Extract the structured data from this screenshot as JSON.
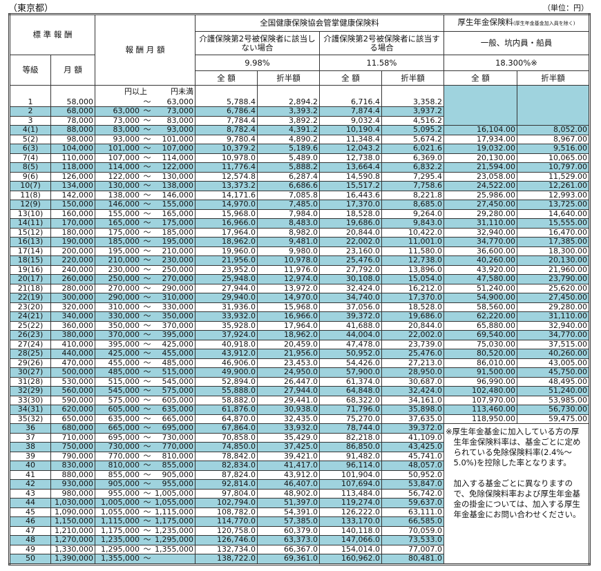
{
  "prefecture": "（東京都）",
  "unit": "（単位：円）",
  "header": {
    "standard": "標 準 報 酬",
    "range": "報 酬 月 額",
    "health": "全国健康保険協会管掌健康保険料",
    "pension": "厚生年金保険料",
    "pension_note": "(厚生年金基金加入員を除く)",
    "health_no_care": "介護保険第2号被保険者に該当しない場合",
    "health_care": "介護保険第2号被保険者に該当する場合",
    "pension_type": "一般、坑内員・船員",
    "grade": "等級",
    "monthly": "月 額",
    "rate1": "9.98%",
    "rate2": "11.58%",
    "rate3": "18.300%※",
    "full": "全 額",
    "half": "折半額",
    "lower": "円以上",
    "upper": "円未満",
    "tilde": "～"
  },
  "rows": [
    [
      "1",
      "58,000",
      "",
      "63,000",
      "5,788.4",
      "2,894.2",
      "6,716.4",
      "3,358.2",
      "",
      ""
    ],
    [
      "2",
      "68,000",
      "63,000",
      "73,000",
      "6,786.4",
      "3,393.2",
      "7,874.4",
      "3,937.2",
      "",
      ""
    ],
    [
      "3",
      "78,000",
      "73,000",
      "83,000",
      "7,784.4",
      "3,892.2",
      "9,032.4",
      "4,516.2",
      "",
      ""
    ],
    [
      "4(1)",
      "88,000",
      "83,000",
      "93,000",
      "8,782.4",
      "4,391.2",
      "10,190.4",
      "5,095.2",
      "16,104.00",
      "8,052.00"
    ],
    [
      "5(2)",
      "98,000",
      "93,000",
      "101,000",
      "9,780.4",
      "4,890.2",
      "11,348.4",
      "5,674.2",
      "17,934.00",
      "8,967.00"
    ],
    [
      "6(3)",
      "104,000",
      "101,000",
      "107,000",
      "10,379.2",
      "5,189.6",
      "12,043.2",
      "6,021.6",
      "19,032.00",
      "9,516.00"
    ],
    [
      "7(4)",
      "110,000",
      "107,000",
      "114,000",
      "10,978.0",
      "5,489.0",
      "12,738.0",
      "6,369.0",
      "20,130.00",
      "10,065.00"
    ],
    [
      "8(5)",
      "118,000",
      "114,000",
      "122,000",
      "11,776.4",
      "5,888.2",
      "13,664.4",
      "6,832.2",
      "21,594.00",
      "10,797.00"
    ],
    [
      "9(6)",
      "126,000",
      "122,000",
      "130,000",
      "12,574.8",
      "6,287.4",
      "14,590.8",
      "7,295.4",
      "23,058.00",
      "11,529.00"
    ],
    [
      "10(7)",
      "134,000",
      "130,000",
      "138,000",
      "13,373.2",
      "6,686.6",
      "15,517.2",
      "7,758.6",
      "24,522.00",
      "12,261.00"
    ],
    [
      "11(8)",
      "142,000",
      "138,000",
      "146,000",
      "14,171.6",
      "7,085.8",
      "16,443.6",
      "8,221.8",
      "25,986.00",
      "12,993.00"
    ],
    [
      "12(9)",
      "150,000",
      "146,000",
      "155,000",
      "14,970.0",
      "7,485.0",
      "17,370.0",
      "8,685.0",
      "27,450.00",
      "13,725.00"
    ],
    [
      "13(10)",
      "160,000",
      "155,000",
      "165,000",
      "15,968.0",
      "7,984.0",
      "18,528.0",
      "9,264.0",
      "29,280.00",
      "14,640.00"
    ],
    [
      "14(11)",
      "170,000",
      "165,000",
      "175,000",
      "16,966.0",
      "8,483.0",
      "19,686.0",
      "9,843.0",
      "31,110.00",
      "15,555.00"
    ],
    [
      "15(12)",
      "180,000",
      "175,000",
      "185,000",
      "17,964.0",
      "8,982.0",
      "20,844.0",
      "10,422.0",
      "32,940.00",
      "16,470.00"
    ],
    [
      "16(13)",
      "190,000",
      "185,000",
      "195,000",
      "18,962.0",
      "9,481.0",
      "22,002.0",
      "11,001.0",
      "34,770.00",
      "17,385.00"
    ],
    [
      "17(14)",
      "200,000",
      "195,000",
      "210,000",
      "19,960.0",
      "9,980.0",
      "23,160.0",
      "11,580.0",
      "36,600.00",
      "18,300.00"
    ],
    [
      "18(15)",
      "220,000",
      "210,000",
      "230,000",
      "21,956.0",
      "10,978.0",
      "25,476.0",
      "12,738.0",
      "40,260.00",
      "20,130.00"
    ],
    [
      "19(16)",
      "240,000",
      "230,000",
      "250,000",
      "23,952.0",
      "11,976.0",
      "27,792.0",
      "13,896.0",
      "43,920.00",
      "21,960.00"
    ],
    [
      "20(17)",
      "260,000",
      "250,000",
      "270,000",
      "25,948.0",
      "12,974.0",
      "30,108.0",
      "15,054.0",
      "47,580.00",
      "23,790.00"
    ],
    [
      "21(18)",
      "280,000",
      "270,000",
      "290,000",
      "27,944.0",
      "13,972.0",
      "32,424.0",
      "16,212.0",
      "51,240.00",
      "25,620.00"
    ],
    [
      "22(19)",
      "300,000",
      "290,000",
      "310,000",
      "29,940.0",
      "14,970.0",
      "34,740.0",
      "17,370.0",
      "54,900.00",
      "27,450.00"
    ],
    [
      "23(20)",
      "320,000",
      "310,000",
      "330,000",
      "31,936.0",
      "15,968.0",
      "37,056.0",
      "18,528.0",
      "58,560.00",
      "29,280.00"
    ],
    [
      "24(21)",
      "340,000",
      "330,000",
      "350,000",
      "33,932.0",
      "16,966.0",
      "39,372.0",
      "19,686.0",
      "62,220.00",
      "31,110.00"
    ],
    [
      "25(22)",
      "360,000",
      "350,000",
      "370,000",
      "35,928.0",
      "17,964.0",
      "41,688.0",
      "20,844.0",
      "65,880.00",
      "32,940.00"
    ],
    [
      "26(23)",
      "380,000",
      "370,000",
      "395,000",
      "37,924.0",
      "18,962.0",
      "44,004.0",
      "22,002.0",
      "69,540.00",
      "34,770.00"
    ],
    [
      "27(24)",
      "410,000",
      "395,000",
      "425,000",
      "40,918.0",
      "20,459.0",
      "47,478.0",
      "23,739.0",
      "75,030.00",
      "37,515.00"
    ],
    [
      "28(25)",
      "440,000",
      "425,000",
      "455,000",
      "43,912.0",
      "21,956.0",
      "50,952.0",
      "25,476.0",
      "80,520.00",
      "40,260.00"
    ],
    [
      "29(26)",
      "470,000",
      "455,000",
      "485,000",
      "46,906.0",
      "23,453.0",
      "54,426.0",
      "27,213.0",
      "86,010.00",
      "43,005.00"
    ],
    [
      "30(27)",
      "500,000",
      "485,000",
      "515,000",
      "49,900.0",
      "24,950.0",
      "57,900.0",
      "28,950.0",
      "91,500.00",
      "45,750.00"
    ],
    [
      "31(28)",
      "530,000",
      "515,000",
      "545,000",
      "52,894.0",
      "26,447.0",
      "61,374.0",
      "30,687.0",
      "96,990.00",
      "48,495.00"
    ],
    [
      "32(29)",
      "560,000",
      "545,000",
      "575,000",
      "55,888.0",
      "27,944.0",
      "64,848.0",
      "32,424.0",
      "102,480.00",
      "51,240.00"
    ],
    [
      "33(30)",
      "590,000",
      "575,000",
      "605,000",
      "58,882.0",
      "29,441.0",
      "68,322.0",
      "34,161.0",
      "107,970.00",
      "53,985.00"
    ],
    [
      "34(31)",
      "620,000",
      "605,000",
      "635,000",
      "61,876.0",
      "30,938.0",
      "71,796.0",
      "35,898.0",
      "113,460.00",
      "56,730.00"
    ],
    [
      "35(32)",
      "650,000",
      "635,000",
      "665,000",
      "64,870.0",
      "32,435.0",
      "75,270.0",
      "37,635.0",
      "118,950.00",
      "59,475.00"
    ],
    [
      "36",
      "680,000",
      "665,000",
      "695,000",
      "67,864.0",
      "33,932.0",
      "78,744.0",
      "39,372.0",
      "",
      ""
    ],
    [
      "37",
      "710,000",
      "695,000",
      "730,000",
      "70,858.0",
      "35,429.0",
      "82,218.0",
      "41,109.0",
      "",
      ""
    ],
    [
      "38",
      "750,000",
      "730,000",
      "770,000",
      "74,850.0",
      "37,425.0",
      "86,850.0",
      "43,425.0",
      "",
      ""
    ],
    [
      "39",
      "790,000",
      "770,000",
      "810,000",
      "78,842.0",
      "39,421.0",
      "91,482.0",
      "45,741.0",
      "",
      ""
    ],
    [
      "40",
      "830,000",
      "810,000",
      "855,000",
      "82,834.0",
      "41,417.0",
      "96,114.0",
      "48,057.0",
      "",
      ""
    ],
    [
      "41",
      "880,000",
      "855,000",
      "905,000",
      "87,824.0",
      "43,912.0",
      "101,904.0",
      "50,952.0",
      "",
      ""
    ],
    [
      "42",
      "930,000",
      "905,000",
      "955,000",
      "92,814.0",
      "46,407.0",
      "107,694.0",
      "53,847.0",
      "",
      ""
    ],
    [
      "43",
      "980,000",
      "955,000",
      "1,005,000",
      "97,804.0",
      "48,902.0",
      "113,484.0",
      "56,742.0",
      "",
      ""
    ],
    [
      "44",
      "1,030,000",
      "1,005,000",
      "1,055,000",
      "102,794.0",
      "51,397.0",
      "119,274.0",
      "59,637.0",
      "",
      ""
    ],
    [
      "45",
      "1,090,000",
      "1,055,000",
      "1,115,000",
      "108,782.0",
      "54,391.0",
      "126,222.0",
      "63,111.0",
      "",
      ""
    ],
    [
      "46",
      "1,150,000",
      "1,115,000",
      "1,175,000",
      "114,770.0",
      "57,385.0",
      "133,170.0",
      "66,585.0",
      "",
      ""
    ],
    [
      "47",
      "1,210,000",
      "1,175,000",
      "1,235,000",
      "120,758.0",
      "60,379.0",
      "140,118.0",
      "70,059.0",
      "",
      ""
    ],
    [
      "48",
      "1,270,000",
      "1,235,000",
      "1,295,000",
      "126,746.0",
      "63,373.0",
      "147,066.0",
      "73,533.0",
      "",
      ""
    ],
    [
      "49",
      "1,330,000",
      "1,295,000",
      "1,355,000",
      "132,734.0",
      "66,367.0",
      "154,014.0",
      "77,007.0",
      "",
      ""
    ],
    [
      "50",
      "1,390,000",
      "1,355,000",
      "",
      "138,722.0",
      "69,361.0",
      "160,962.0",
      "80,481.0",
      "",
      ""
    ]
  ],
  "note": {
    "p1": "※厚生年金基金に加入している方の厚生年金保険料率は、基金ごとに定められている免除保険料率(2.4%～5.0%)を控除した率となります。",
    "p2": "加入する基金ごとに異なりますので、免除保険料率および厚生年金基金の掛金については、加入する厚生年金基金にお問い合わせください。"
  },
  "colors": {
    "highlight": "#9fd3de",
    "border": "#333333"
  }
}
